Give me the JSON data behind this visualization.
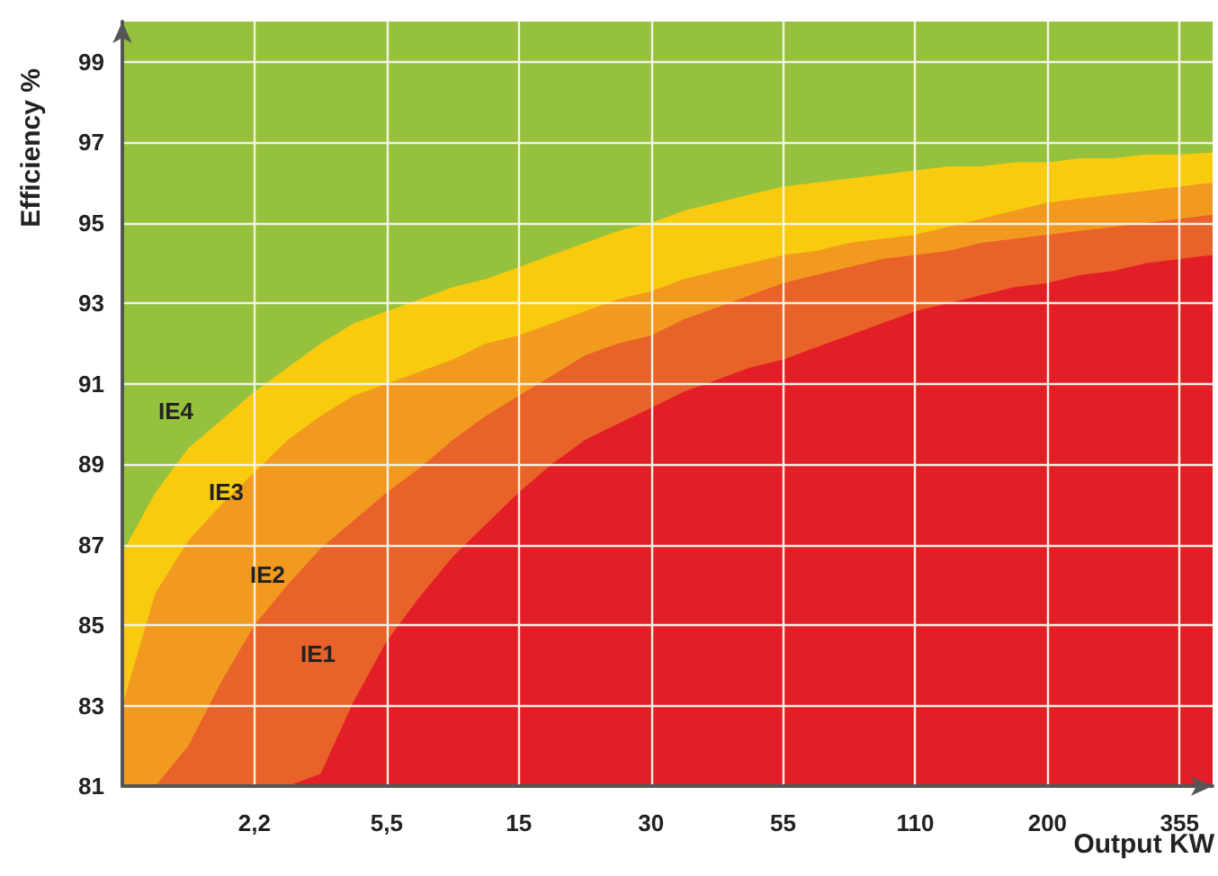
{
  "chart_data": {
    "type": "area",
    "xlabel": "Output KW",
    "ylabel": "Efficiency %",
    "categories": [
      null,
      null,
      null,
      null,
      "2,2",
      null,
      null,
      null,
      "5,5",
      null,
      null,
      null,
      "15",
      null,
      null,
      null,
      "30",
      null,
      null,
      null,
      "55",
      null,
      null,
      null,
      "110",
      null,
      null,
      null,
      "200",
      null,
      null,
      null,
      "355",
      null
    ],
    "series": [
      {
        "name": "IE4",
        "color": "#95c13c",
        "values": [
          100,
          100,
          100,
          100,
          100,
          100,
          100,
          100,
          100,
          100,
          100,
          100,
          100,
          100,
          100,
          100,
          100,
          100,
          100,
          100,
          100,
          100,
          100,
          100,
          100,
          100,
          100,
          100,
          100,
          100,
          100,
          100,
          100,
          100
        ]
      },
      {
        "name": "IE3",
        "color": "#f9cb0f",
        "values": [
          86.8,
          88.3,
          89.4,
          90.1,
          90.8,
          91.4,
          92.0,
          92.5,
          92.8,
          93.1,
          93.4,
          93.6,
          93.9,
          94.2,
          94.5,
          94.8,
          95.0,
          95.3,
          95.5,
          95.7,
          95.9,
          96.0,
          96.1,
          96.2,
          96.3,
          96.4,
          96.4,
          96.5,
          96.5,
          96.6,
          96.6,
          96.7,
          96.7,
          96.75
        ]
      },
      {
        "name": "IE2",
        "color": "#f29a1f",
        "values": [
          83.0,
          85.8,
          87.1,
          88.0,
          88.8,
          89.6,
          90.2,
          90.7,
          91.0,
          91.3,
          91.6,
          92.0,
          92.2,
          92.5,
          92.8,
          93.1,
          93.3,
          93.6,
          93.8,
          94.0,
          94.2,
          94.3,
          94.5,
          94.6,
          94.7,
          94.9,
          95.1,
          95.3,
          95.5,
          95.6,
          95.7,
          95.8,
          95.9,
          96.0
        ]
      },
      {
        "name": "IE1",
        "color": "#e8622a",
        "values": [
          null,
          81,
          82.0,
          83.6,
          85.0,
          86.0,
          86.9,
          87.6,
          88.3,
          88.9,
          89.6,
          90.2,
          90.7,
          91.2,
          91.7,
          92.0,
          92.2,
          92.6,
          92.9,
          93.2,
          93.5,
          93.7,
          93.9,
          94.1,
          94.2,
          94.3,
          94.5,
          94.6,
          94.7,
          94.8,
          94.9,
          95.0,
          95.1,
          95.2
        ]
      },
      {
        "color": "#e31e26",
        "values": [
          null,
          null,
          null,
          null,
          null,
          81,
          81.3,
          83.1,
          84.6,
          85.7,
          86.7,
          87.5,
          88.3,
          89.0,
          89.6,
          90.0,
          90.4,
          90.8,
          91.1,
          91.4,
          91.6,
          91.9,
          92.2,
          92.5,
          92.8,
          93.0,
          93.2,
          93.4,
          93.5,
          93.7,
          93.8,
          94.0,
          94.1,
          94.2
        ]
      }
    ],
    "ylim": [
      81,
      100
    ],
    "yticks": [
      81,
      83,
      85,
      87,
      89,
      91,
      93,
      95,
      97,
      99
    ],
    "grid": true
  }
}
